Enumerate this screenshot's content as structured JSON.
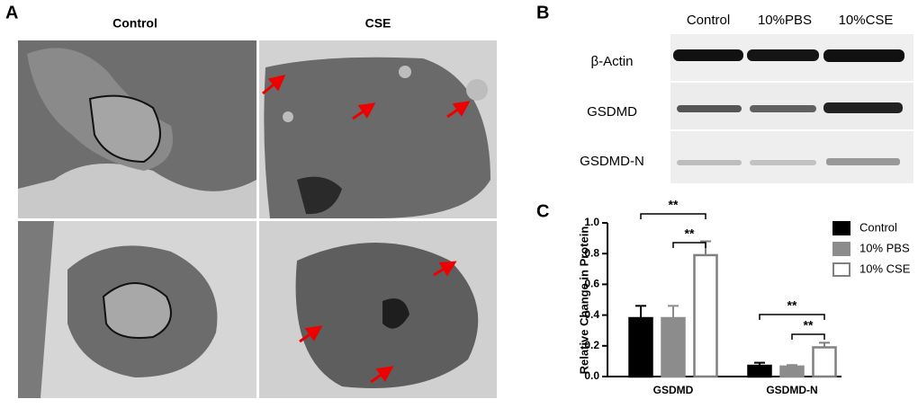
{
  "figure": {
    "panel_a": {
      "label": "A",
      "columns": [
        "Control",
        "CSE"
      ]
    },
    "panel_b": {
      "label": "B",
      "lanes": [
        "Control",
        "10%PBS",
        "10%CSE"
      ],
      "rows": [
        "β-Actin",
        "GSDMD",
        "GSDMD-N"
      ]
    },
    "panel_c": {
      "label": "C"
    }
  },
  "chart_data": {
    "type": "bar",
    "ylabel": "Relative Change in Protein",
    "categories": [
      "GSDMD",
      "GSDMD-N"
    ],
    "series": [
      {
        "name": "Control",
        "color": "#000000",
        "edgecolor": "#000000",
        "values": [
          0.38,
          0.07
        ],
        "errors": [
          0.08,
          0.02
        ]
      },
      {
        "name": "10% PBS",
        "color": "#8c8c8c",
        "edgecolor": "#8c8c8c",
        "values": [
          0.38,
          0.065
        ],
        "errors": [
          0.08,
          0.01
        ]
      },
      {
        "name": "10% CSE",
        "color": "#ffffff",
        "edgecolor": "#808080",
        "values": [
          0.79,
          0.19
        ],
        "errors": [
          0.09,
          0.03
        ]
      }
    ],
    "ylim": [
      0,
      1.0
    ],
    "yticks": [
      {
        "value": 0,
        "label": "0.0"
      },
      0.2,
      0.4,
      0.6,
      0.8,
      {
        "value": 1.0,
        "label": "1.0"
      }
    ],
    "annotations": [
      "**",
      "**",
      "**",
      "**"
    ],
    "legend": "right"
  }
}
